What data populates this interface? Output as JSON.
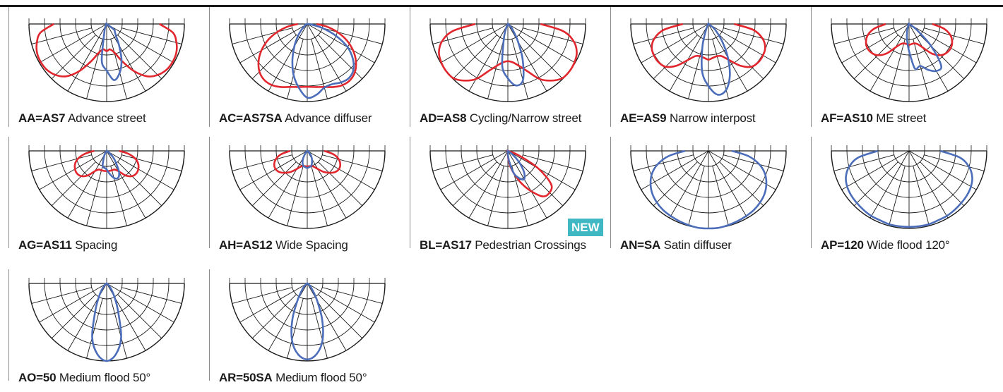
{
  "colors": {
    "red": "#e1262d",
    "blue": "#4b6dba",
    "grid": "#1a1a1a",
    "badge": "#3fb8c4"
  },
  "items": [
    {
      "code": "AA=AS7",
      "desc": "Advance street",
      "curves": [
        {
          "color": "red",
          "r": [
            0.68,
            0.86,
            0.93,
            0.97,
            0.98,
            0.97,
            0.93,
            0.85,
            0.7,
            0.52,
            0.38,
            0.33,
            0.35,
            0.33,
            0.38,
            0.52,
            0.7,
            0.85,
            0.93,
            0.97,
            0.98,
            0.97,
            0.93,
            0.86,
            0.68
          ]
        },
        {
          "color": "blue",
          "r": [
            0,
            0,
            0,
            0,
            0,
            0,
            0,
            0,
            0.02,
            0.05,
            0.12,
            0.48,
            0.6,
            0.73,
            0.65,
            0.5,
            0.32,
            0.2,
            0.15,
            0.12,
            0,
            0,
            0,
            0,
            0
          ]
        }
      ]
    },
    {
      "code": "AC=AS7SA",
      "desc": "Advance diffuser",
      "curves": [
        {
          "color": "red",
          "r": [
            0.12,
            0.25,
            0.4,
            0.55,
            0.68,
            0.79,
            0.87,
            0.91,
            0.91,
            0.88,
            0.84,
            0.82,
            0.81,
            0.82,
            0.84,
            0.88,
            0.91,
            0.91,
            0.87,
            0.79,
            0.68,
            0.55,
            0.4,
            0.25,
            0.12
          ]
        },
        {
          "color": "blue",
          "r": [
            0,
            0,
            0,
            0.02,
            0.03,
            0.04,
            0.1,
            0.2,
            0.33,
            0.5,
            0.68,
            0.83,
            0.95,
            0.92,
            0.85,
            0.84,
            0.87,
            0.88,
            0.84,
            0.74,
            0.6,
            0.4,
            0.2,
            0.05,
            0
          ]
        }
      ]
    },
    {
      "code": "AD=AS8",
      "desc": "Cycling/Narrow street",
      "curves": [
        {
          "color": "red",
          "r": [
            0.42,
            0.72,
            0.88,
            0.96,
            0.99,
            1.0,
            0.99,
            0.92,
            0.82,
            0.66,
            0.56,
            0.5,
            0.48,
            0.5,
            0.56,
            0.66,
            0.82,
            0.92,
            0.99,
            1.0,
            0.99,
            0.96,
            0.88,
            0.72,
            0.42
          ]
        },
        {
          "color": "blue",
          "r": [
            0,
            0,
            0,
            0,
            0,
            0,
            0,
            0,
            0,
            0.06,
            0.2,
            0.55,
            0.7,
            0.8,
            0.75,
            0.5,
            0.26,
            0.12,
            0.06,
            0,
            0,
            0,
            0,
            0,
            0
          ]
        }
      ]
    },
    {
      "code": "AE=AS9",
      "desc": "Narrow interpost",
      "curves": [
        {
          "color": "red",
          "r": [
            0.33,
            0.58,
            0.72,
            0.79,
            0.81,
            0.81,
            0.78,
            0.68,
            0.54,
            0.45,
            0.43,
            0.44,
            0.46,
            0.44,
            0.43,
            0.45,
            0.54,
            0.68,
            0.78,
            0.81,
            0.81,
            0.79,
            0.72,
            0.58,
            0.33
          ]
        },
        {
          "color": "blue",
          "r": [
            0,
            0,
            0,
            0,
            0,
            0,
            0,
            0,
            0,
            0.08,
            0.3,
            0.62,
            0.8,
            0.92,
            0.88,
            0.72,
            0.5,
            0.3,
            0.16,
            0.08,
            0,
            0,
            0,
            0,
            0
          ]
        }
      ]
    },
    {
      "code": "AF=AS10",
      "desc": "ME street",
      "curves": [
        {
          "color": "red",
          "r": [
            0.3,
            0.45,
            0.55,
            0.6,
            0.62,
            0.61,
            0.57,
            0.48,
            0.35,
            0.28,
            0.26,
            0.26,
            0.27,
            0.26,
            0.26,
            0.28,
            0.35,
            0.48,
            0.57,
            0.61,
            0.62,
            0.6,
            0.55,
            0.45,
            0.3
          ]
        },
        {
          "color": "blue",
          "r": [
            0,
            0,
            0,
            0,
            0,
            0,
            0,
            0,
            0,
            0.03,
            0.1,
            0.2,
            0.35,
            0.58,
            0.56,
            0.64,
            0.7,
            0.68,
            0.4,
            0.12,
            0,
            0,
            0,
            0,
            0
          ]
        }
      ]
    },
    {
      "code": "AG=AS11",
      "desc": "Spacing",
      "curves": [
        {
          "color": "red",
          "r": [
            0.16,
            0.28,
            0.38,
            0.44,
            0.47,
            0.48,
            0.46,
            0.4,
            0.3,
            0.26,
            0.26,
            0.26,
            0.26,
            0.26,
            0.26,
            0.26,
            0.3,
            0.4,
            0.46,
            0.48,
            0.47,
            0.44,
            0.38,
            0.28,
            0.16
          ]
        },
        {
          "color": "blue",
          "r": [
            0,
            0,
            0,
            0,
            0,
            0,
            0,
            0,
            0.05,
            0.1,
            0.2,
            0.22,
            0.24,
            0.3,
            0.36,
            0.38,
            0.32,
            0.2,
            0.12,
            0.04,
            0,
            0,
            0,
            0,
            0
          ]
        }
      ]
    },
    {
      "code": "AH=AS12",
      "desc": "Wide Spacing",
      "curves": [
        {
          "color": "red",
          "r": [
            0.22,
            0.34,
            0.42,
            0.46,
            0.47,
            0.45,
            0.4,
            0.34,
            0.27,
            0.22,
            0.2,
            0.2,
            0.2,
            0.2,
            0.2,
            0.22,
            0.27,
            0.34,
            0.4,
            0.45,
            0.47,
            0.46,
            0.42,
            0.34,
            0.22
          ]
        },
        {
          "color": "blue",
          "r": [
            0,
            0,
            0,
            0,
            0,
            0,
            0,
            0.04,
            0.1,
            0.16,
            0.2,
            0.21,
            0.22,
            0.21,
            0.2,
            0.16,
            0.12,
            0.08,
            0.04,
            0,
            0,
            0,
            0,
            0,
            0
          ]
        }
      ]
    },
    {
      "code": "BL=AS17",
      "desc": "Pedestrian Crossings",
      "badge": "NEW",
      "curves": [
        {
          "color": "red",
          "r": [
            0,
            0,
            0,
            0,
            0,
            0,
            0,
            0,
            0,
            0,
            0,
            0,
            0.06,
            0.18,
            0.3,
            0.45,
            0.6,
            0.74,
            0.76,
            0.7,
            0.45,
            0.15,
            0,
            0,
            0
          ]
        },
        {
          "color": "blue",
          "r": [
            0,
            0,
            0,
            0,
            0,
            0,
            0,
            0,
            0,
            0,
            0,
            0,
            0.04,
            0.14,
            0.3,
            0.38,
            0.42,
            0.34,
            0.2,
            0.08,
            0,
            0,
            0,
            0,
            0
          ]
        }
      ]
    },
    {
      "code": "AN=SA",
      "desc": "Satin diffuser",
      "curves": [
        {
          "color": "blue",
          "r": [
            0.3,
            0.52,
            0.68,
            0.79,
            0.86,
            0.91,
            0.94,
            0.96,
            0.97,
            0.98,
            0.99,
            1.0,
            1.0,
            1.0,
            0.99,
            0.98,
            0.97,
            0.96,
            0.94,
            0.91,
            0.86,
            0.79,
            0.68,
            0.52,
            0.3
          ]
        }
      ]
    },
    {
      "code": "AP=120",
      "desc": "Wide flood 120°",
      "curves": [
        {
          "color": "blue",
          "r": [
            0.4,
            0.66,
            0.8,
            0.88,
            0.92,
            0.94,
            0.95,
            0.96,
            0.97,
            0.97,
            0.98,
            0.98,
            0.98,
            0.98,
            0.98,
            0.97,
            0.97,
            0.96,
            0.95,
            0.94,
            0.92,
            0.88,
            0.8,
            0.66,
            0.4
          ]
        }
      ]
    },
    {
      "code": "AO=50",
      "desc": "Medium flood 50°",
      "curves": [
        {
          "color": "blue",
          "r": [
            0,
            0,
            0,
            0,
            0,
            0.02,
            0.05,
            0.1,
            0.2,
            0.38,
            0.72,
            0.92,
            1.0,
            0.92,
            0.72,
            0.38,
            0.2,
            0.1,
            0.05,
            0.02,
            0,
            0,
            0,
            0,
            0
          ]
        }
      ]
    },
    {
      "code": "AR=50SA",
      "desc": "Medium flood 50°",
      "curves": [
        {
          "color": "blue",
          "r": [
            0,
            0,
            0,
            0,
            0,
            0.03,
            0.06,
            0.12,
            0.25,
            0.5,
            0.76,
            0.92,
            0.98,
            0.92,
            0.76,
            0.5,
            0.25,
            0.12,
            0.06,
            0.03,
            0,
            0,
            0,
            0,
            0
          ]
        }
      ]
    }
  ]
}
